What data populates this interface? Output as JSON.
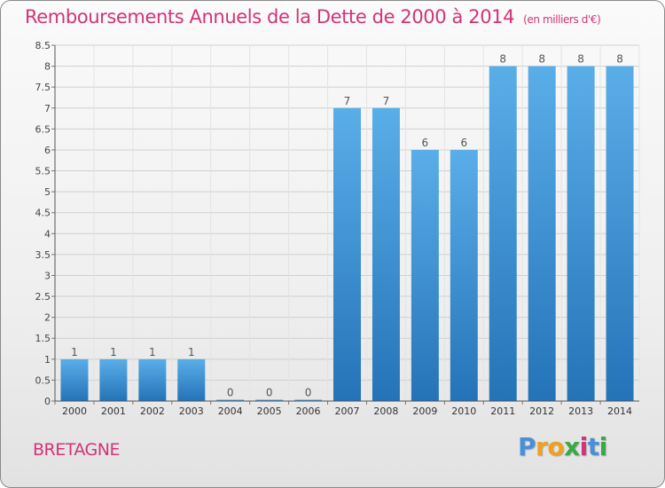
{
  "chart_data": {
    "type": "bar",
    "title": "Remboursements Annuels de la Dette de 2000 à 2014",
    "subtitle": "(en milliers d'€)",
    "categories": [
      "2000",
      "2001",
      "2002",
      "2003",
      "2004",
      "2005",
      "2006",
      "2007",
      "2008",
      "2009",
      "2010",
      "2011",
      "2012",
      "2013",
      "2014"
    ],
    "values": [
      1,
      1,
      1,
      1,
      0,
      0,
      0,
      7,
      7,
      6,
      6,
      8,
      8,
      8,
      8
    ],
    "ylim": [
      0,
      8.5
    ],
    "yticks": [
      "0",
      "0.5",
      "1",
      "1.5",
      "2",
      "2.5",
      "3",
      "3.5",
      "4",
      "4.5",
      "5",
      "5.5",
      "6",
      "6.5",
      "7",
      "7.5",
      "8",
      "8.5"
    ],
    "grid": true,
    "colors": {
      "bar_light": "#5aaee8",
      "bar_dark": "#2473b8",
      "text": "#d2347a"
    }
  },
  "footer": {
    "region": "BRETAGNE",
    "logo": [
      "P",
      "r",
      "o",
      "x",
      "i",
      "t",
      "i"
    ]
  }
}
